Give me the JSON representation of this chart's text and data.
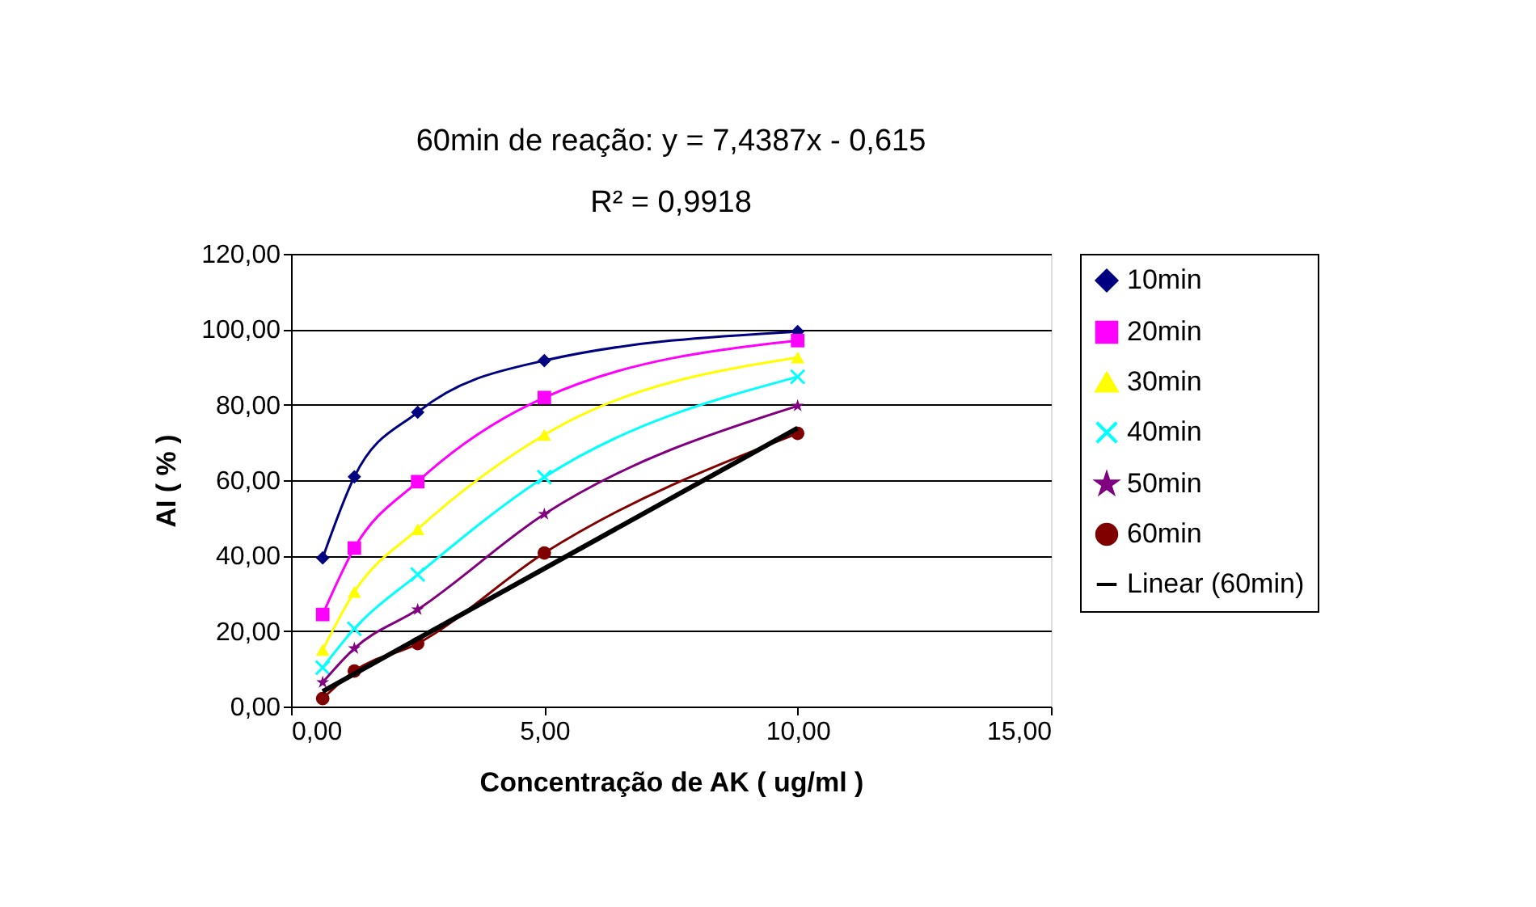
{
  "chart_data": {
    "type": "line",
    "xlabel": "Concentração de AK ( ug/ml )",
    "ylabel": "AI ( % )",
    "annotations": [
      "60min de reação: y = 7,4387x - 0,615",
      "R² = 0,9918"
    ],
    "x": [
      0.625,
      1.25,
      2.5,
      5,
      10
    ],
    "series": [
      {
        "name": "10min",
        "color": "#000080",
        "marker": "diamond",
        "values": [
          39.4,
          60.9,
          78,
          91.7,
          99.4
        ]
      },
      {
        "name": "20min",
        "color": "#ff00ff",
        "marker": "square",
        "values": [
          24.4,
          42,
          59.6,
          81.9,
          97
        ]
      },
      {
        "name": "30min",
        "color": "#ffff00",
        "marker": "triangle",
        "values": [
          15,
          30.4,
          47,
          72,
          92.5
        ]
      },
      {
        "name": "40min",
        "color": "#00ffff",
        "marker": "cross",
        "values": [
          10.3,
          20.6,
          35,
          60.8,
          87.4
        ]
      },
      {
        "name": "50min",
        "color": "#800080",
        "marker": "star",
        "values": [
          6.4,
          15.4,
          25.7,
          51,
          79.7
        ]
      },
      {
        "name": "60min",
        "color": "#800000",
        "marker": "circle",
        "values": [
          2.1,
          9.4,
          16.7,
          40.7,
          72.4
        ]
      },
      {
        "name": "Linear (60min)",
        "color": "#000000",
        "type": "line",
        "marker": "none",
        "x": [
          0.625,
          10
        ],
        "values": [
          4.0,
          73.8
        ]
      }
    ],
    "xlim": [
      0,
      15
    ],
    "xticks": [
      {
        "value": 0,
        "label": "0,00"
      },
      {
        "value": 5,
        "label": "5,00"
      },
      {
        "value": 10,
        "label": "10,00"
      },
      {
        "value": 15,
        "label": "15,00"
      }
    ],
    "ylim": [
      0,
      120
    ],
    "yticks": [
      {
        "value": 0,
        "label": "0,00"
      },
      {
        "value": 20,
        "label": "20,00"
      },
      {
        "value": 40,
        "label": "40,00"
      },
      {
        "value": 60,
        "label": "60,00"
      },
      {
        "value": 80,
        "label": "80,00"
      },
      {
        "value": 100,
        "label": "100,00"
      },
      {
        "value": 120,
        "label": "120,00"
      }
    ],
    "grid": "y",
    "legend": "right"
  }
}
